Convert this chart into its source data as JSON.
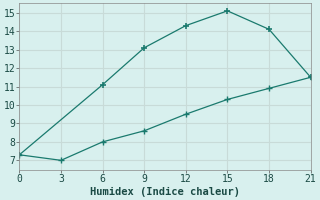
{
  "line1_x": [
    0,
    6,
    9,
    12,
    15,
    18,
    21
  ],
  "line1_y": [
    7.3,
    11.1,
    13.1,
    14.3,
    15.1,
    14.1,
    11.5
  ],
  "line2_x": [
    0,
    3,
    6,
    9,
    12,
    15,
    18,
    21
  ],
  "line2_y": [
    7.3,
    7.0,
    8.0,
    8.6,
    9.5,
    10.3,
    10.9,
    11.5
  ],
  "color": "#1a7a6e",
  "bg_color": "#d8f0ee",
  "plot_bg": "#d8f0ee",
  "grid_color": "#c8dbd8",
  "xlabel": "Humidex (Indice chaleur)",
  "xlim": [
    0,
    21
  ],
  "ylim": [
    6.5,
    15.5
  ],
  "xticks": [
    0,
    3,
    6,
    9,
    12,
    15,
    18,
    21
  ],
  "yticks": [
    7,
    8,
    9,
    10,
    11,
    12,
    13,
    14,
    15
  ],
  "xlabel_fontsize": 7.5,
  "tick_fontsize": 7
}
